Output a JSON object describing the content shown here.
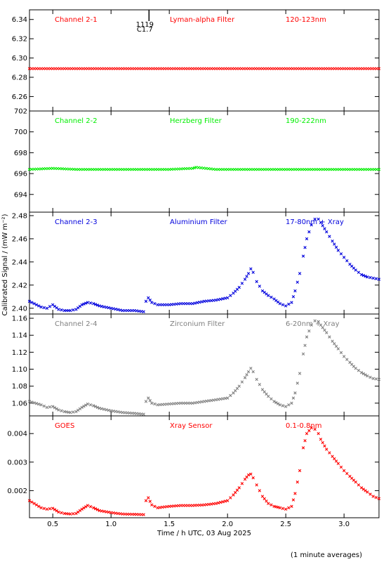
{
  "chart_data": {
    "type": "scatter",
    "xlabel": "Time / h UTC, 03 Aug 2025",
    "ylabel": "Calibrated Signal / (mW m⁻²)",
    "footnote": "(1 minute averages)",
    "xlim": [
      0.3,
      3.3
    ],
    "xticks": [
      0.5,
      1.0,
      1.5,
      2.0,
      2.5,
      3.0
    ],
    "xtick_labels": [
      "0.5",
      "1.0",
      "1.5",
      "2.0",
      "2.5",
      "3.0"
    ],
    "flare_marker": {
      "x": 1.32,
      "label_top": "1119",
      "label_bottom": "C1.7"
    },
    "panels": [
      {
        "channel": "Channel 2-1",
        "filter": "Lyman-alpha Filter",
        "band": "120-123nm",
        "color": "#ff0000",
        "ylim": [
          6.245,
          6.35
        ],
        "yticks": [
          6.26,
          6.28,
          6.3,
          6.32,
          6.34
        ],
        "ytick_labels": [
          "6.26",
          "6.28",
          "6.30",
          "6.32",
          "6.34"
        ],
        "series": {
          "x": [
            0.3,
            0.5,
            0.7,
            0.9,
            1.1,
            1.3,
            1.5,
            1.7,
            1.9,
            2.1,
            2.3,
            2.5,
            2.7,
            2.9,
            3.1,
            3.3
          ],
          "y": [
            6.289,
            6.289,
            6.289,
            6.289,
            6.289,
            6.289,
            6.289,
            6.289,
            6.289,
            6.289,
            6.289,
            6.289,
            6.289,
            6.289,
            6.289,
            6.289
          ]
        }
      },
      {
        "channel": "Channel 2-2",
        "filter": "Herzberg Filter",
        "band": "190-222nm",
        "color": "#00ee00",
        "ylim": [
          692.3,
          702.0
        ],
        "yticks": [
          694,
          696,
          698,
          700,
          702
        ],
        "ytick_labels": [
          "694",
          "696",
          "698",
          "700",
          "702"
        ],
        "series": {
          "x": [
            0.3,
            0.5,
            0.7,
            0.9,
            1.1,
            1.3,
            1.5,
            1.7,
            1.73,
            1.9,
            2.1,
            2.3,
            2.5,
            2.7,
            2.9,
            3.1,
            3.3
          ],
          "y": [
            696.4,
            696.5,
            696.4,
            696.4,
            696.4,
            696.4,
            696.4,
            696.5,
            696.6,
            696.4,
            696.4,
            696.4,
            696.4,
            696.4,
            696.4,
            696.4,
            696.4
          ]
        }
      },
      {
        "channel": "Channel 2-3",
        "filter": "Aluminium Filter",
        "band": "17-80nm + Xray",
        "color": "#0000dd",
        "ylim": [
          2.395,
          2.483
        ],
        "yticks": [
          2.4,
          2.42,
          2.44,
          2.46,
          2.48
        ],
        "ytick_labels": [
          "2.40",
          "2.42",
          "2.44",
          "2.46",
          "2.48"
        ],
        "series": {
          "x": [
            0.3,
            0.4,
            0.45,
            0.5,
            0.55,
            0.6,
            0.65,
            0.7,
            0.75,
            0.8,
            0.85,
            0.9,
            1.0,
            1.1,
            1.2,
            1.28,
            1.3,
            1.32,
            1.35,
            1.4,
            1.5,
            1.6,
            1.7,
            1.8,
            1.9,
            2.0,
            2.05,
            2.1,
            2.15,
            2.18,
            2.2,
            2.22,
            2.25,
            2.3,
            2.35,
            2.4,
            2.45,
            2.5,
            2.55,
            2.58,
            2.62,
            2.65,
            2.68,
            2.72,
            2.75,
            2.78,
            2.8,
            2.85,
            2.9,
            2.95,
            3.0,
            3.05,
            3.1,
            3.15,
            3.2,
            3.25,
            3.3
          ],
          "y": [
            2.406,
            2.401,
            2.4,
            2.403,
            2.399,
            2.398,
            2.398,
            2.399,
            2.403,
            2.405,
            2.404,
            2.402,
            2.4,
            2.398,
            2.398,
            2.397,
            2.406,
            2.409,
            2.405,
            2.403,
            2.403,
            2.404,
            2.404,
            2.406,
            2.407,
            2.409,
            2.413,
            2.418,
            2.425,
            2.43,
            2.434,
            2.431,
            2.423,
            2.415,
            2.411,
            2.408,
            2.404,
            2.402,
            2.405,
            2.415,
            2.43,
            2.445,
            2.46,
            2.472,
            2.477,
            2.477,
            2.474,
            2.466,
            2.458,
            2.45,
            2.444,
            2.438,
            2.433,
            2.429,
            2.427,
            2.426,
            2.425
          ]
        }
      },
      {
        "channel": "Channel 2-4",
        "filter": "Zirconium Filter",
        "band": "6-20nm + Xray",
        "color": "#808080",
        "ylim": [
          1.045,
          1.165
        ],
        "yticks": [
          1.06,
          1.08,
          1.1,
          1.12,
          1.14,
          1.16
        ],
        "ytick_labels": [
          "1.06",
          "1.08",
          "1.10",
          "1.12",
          "1.14",
          "1.16"
        ],
        "series": {
          "x": [
            0.3,
            0.4,
            0.45,
            0.5,
            0.55,
            0.6,
            0.65,
            0.7,
            0.75,
            0.8,
            0.85,
            0.9,
            1.0,
            1.1,
            1.2,
            1.28,
            1.3,
            1.32,
            1.35,
            1.4,
            1.5,
            1.6,
            1.7,
            1.8,
            1.9,
            2.0,
            2.05,
            2.1,
            2.15,
            2.18,
            2.2,
            2.22,
            2.25,
            2.3,
            2.35,
            2.4,
            2.45,
            2.5,
            2.55,
            2.58,
            2.62,
            2.65,
            2.68,
            2.72,
            2.75,
            2.78,
            2.8,
            2.85,
            2.9,
            2.95,
            3.0,
            3.05,
            3.1,
            3.15,
            3.2,
            3.25,
            3.3
          ],
          "y": [
            1.062,
            1.058,
            1.055,
            1.056,
            1.052,
            1.05,
            1.049,
            1.05,
            1.055,
            1.059,
            1.057,
            1.054,
            1.051,
            1.049,
            1.048,
            1.047,
            1.062,
            1.066,
            1.06,
            1.058,
            1.059,
            1.06,
            1.06,
            1.062,
            1.064,
            1.066,
            1.072,
            1.08,
            1.09,
            1.097,
            1.101,
            1.097,
            1.088,
            1.076,
            1.068,
            1.062,
            1.058,
            1.056,
            1.06,
            1.072,
            1.095,
            1.118,
            1.138,
            1.152,
            1.157,
            1.156,
            1.152,
            1.143,
            1.133,
            1.124,
            1.115,
            1.108,
            1.101,
            1.096,
            1.092,
            1.089,
            1.088
          ]
        }
      },
      {
        "channel": "GOES",
        "filter": "Xray Sensor",
        "band": "0.1-0.8nm",
        "color": "#ff0000",
        "ylim": [
          0.00105,
          0.00462
        ],
        "yticks": [
          0.002,
          0.003,
          0.004
        ],
        "ytick_labels": [
          "0.002",
          "0.003",
          "0.004"
        ],
        "series": {
          "x": [
            0.3,
            0.4,
            0.45,
            0.5,
            0.55,
            0.6,
            0.65,
            0.7,
            0.75,
            0.8,
            0.85,
            0.9,
            1.0,
            1.1,
            1.2,
            1.28,
            1.3,
            1.32,
            1.35,
            1.4,
            1.5,
            1.6,
            1.7,
            1.8,
            1.9,
            2.0,
            2.05,
            2.1,
            2.15,
            2.18,
            2.2,
            2.22,
            2.25,
            2.3,
            2.35,
            2.4,
            2.45,
            2.5,
            2.55,
            2.58,
            2.62,
            2.65,
            2.68,
            2.72,
            2.75,
            2.78,
            2.8,
            2.85,
            2.9,
            2.95,
            3.0,
            3.05,
            3.1,
            3.15,
            3.2,
            3.25,
            3.3
          ],
          "y": [
            0.00165,
            0.0014,
            0.00135,
            0.00138,
            0.00125,
            0.0012,
            0.00118,
            0.0012,
            0.00135,
            0.00148,
            0.0014,
            0.0013,
            0.00123,
            0.00118,
            0.00117,
            0.00116,
            0.00165,
            0.00175,
            0.0015,
            0.0014,
            0.00145,
            0.00148,
            0.00148,
            0.0015,
            0.00155,
            0.00165,
            0.00185,
            0.0021,
            0.0024,
            0.00255,
            0.00258,
            0.00245,
            0.0022,
            0.0018,
            0.00155,
            0.00145,
            0.0014,
            0.00135,
            0.00145,
            0.0019,
            0.0027,
            0.0035,
            0.004,
            0.0042,
            0.00415,
            0.004,
            0.0038,
            0.00345,
            0.0032,
            0.00295,
            0.0027,
            0.0025,
            0.0023,
            0.0021,
            0.00195,
            0.0018,
            0.00172
          ]
        }
      }
    ]
  }
}
